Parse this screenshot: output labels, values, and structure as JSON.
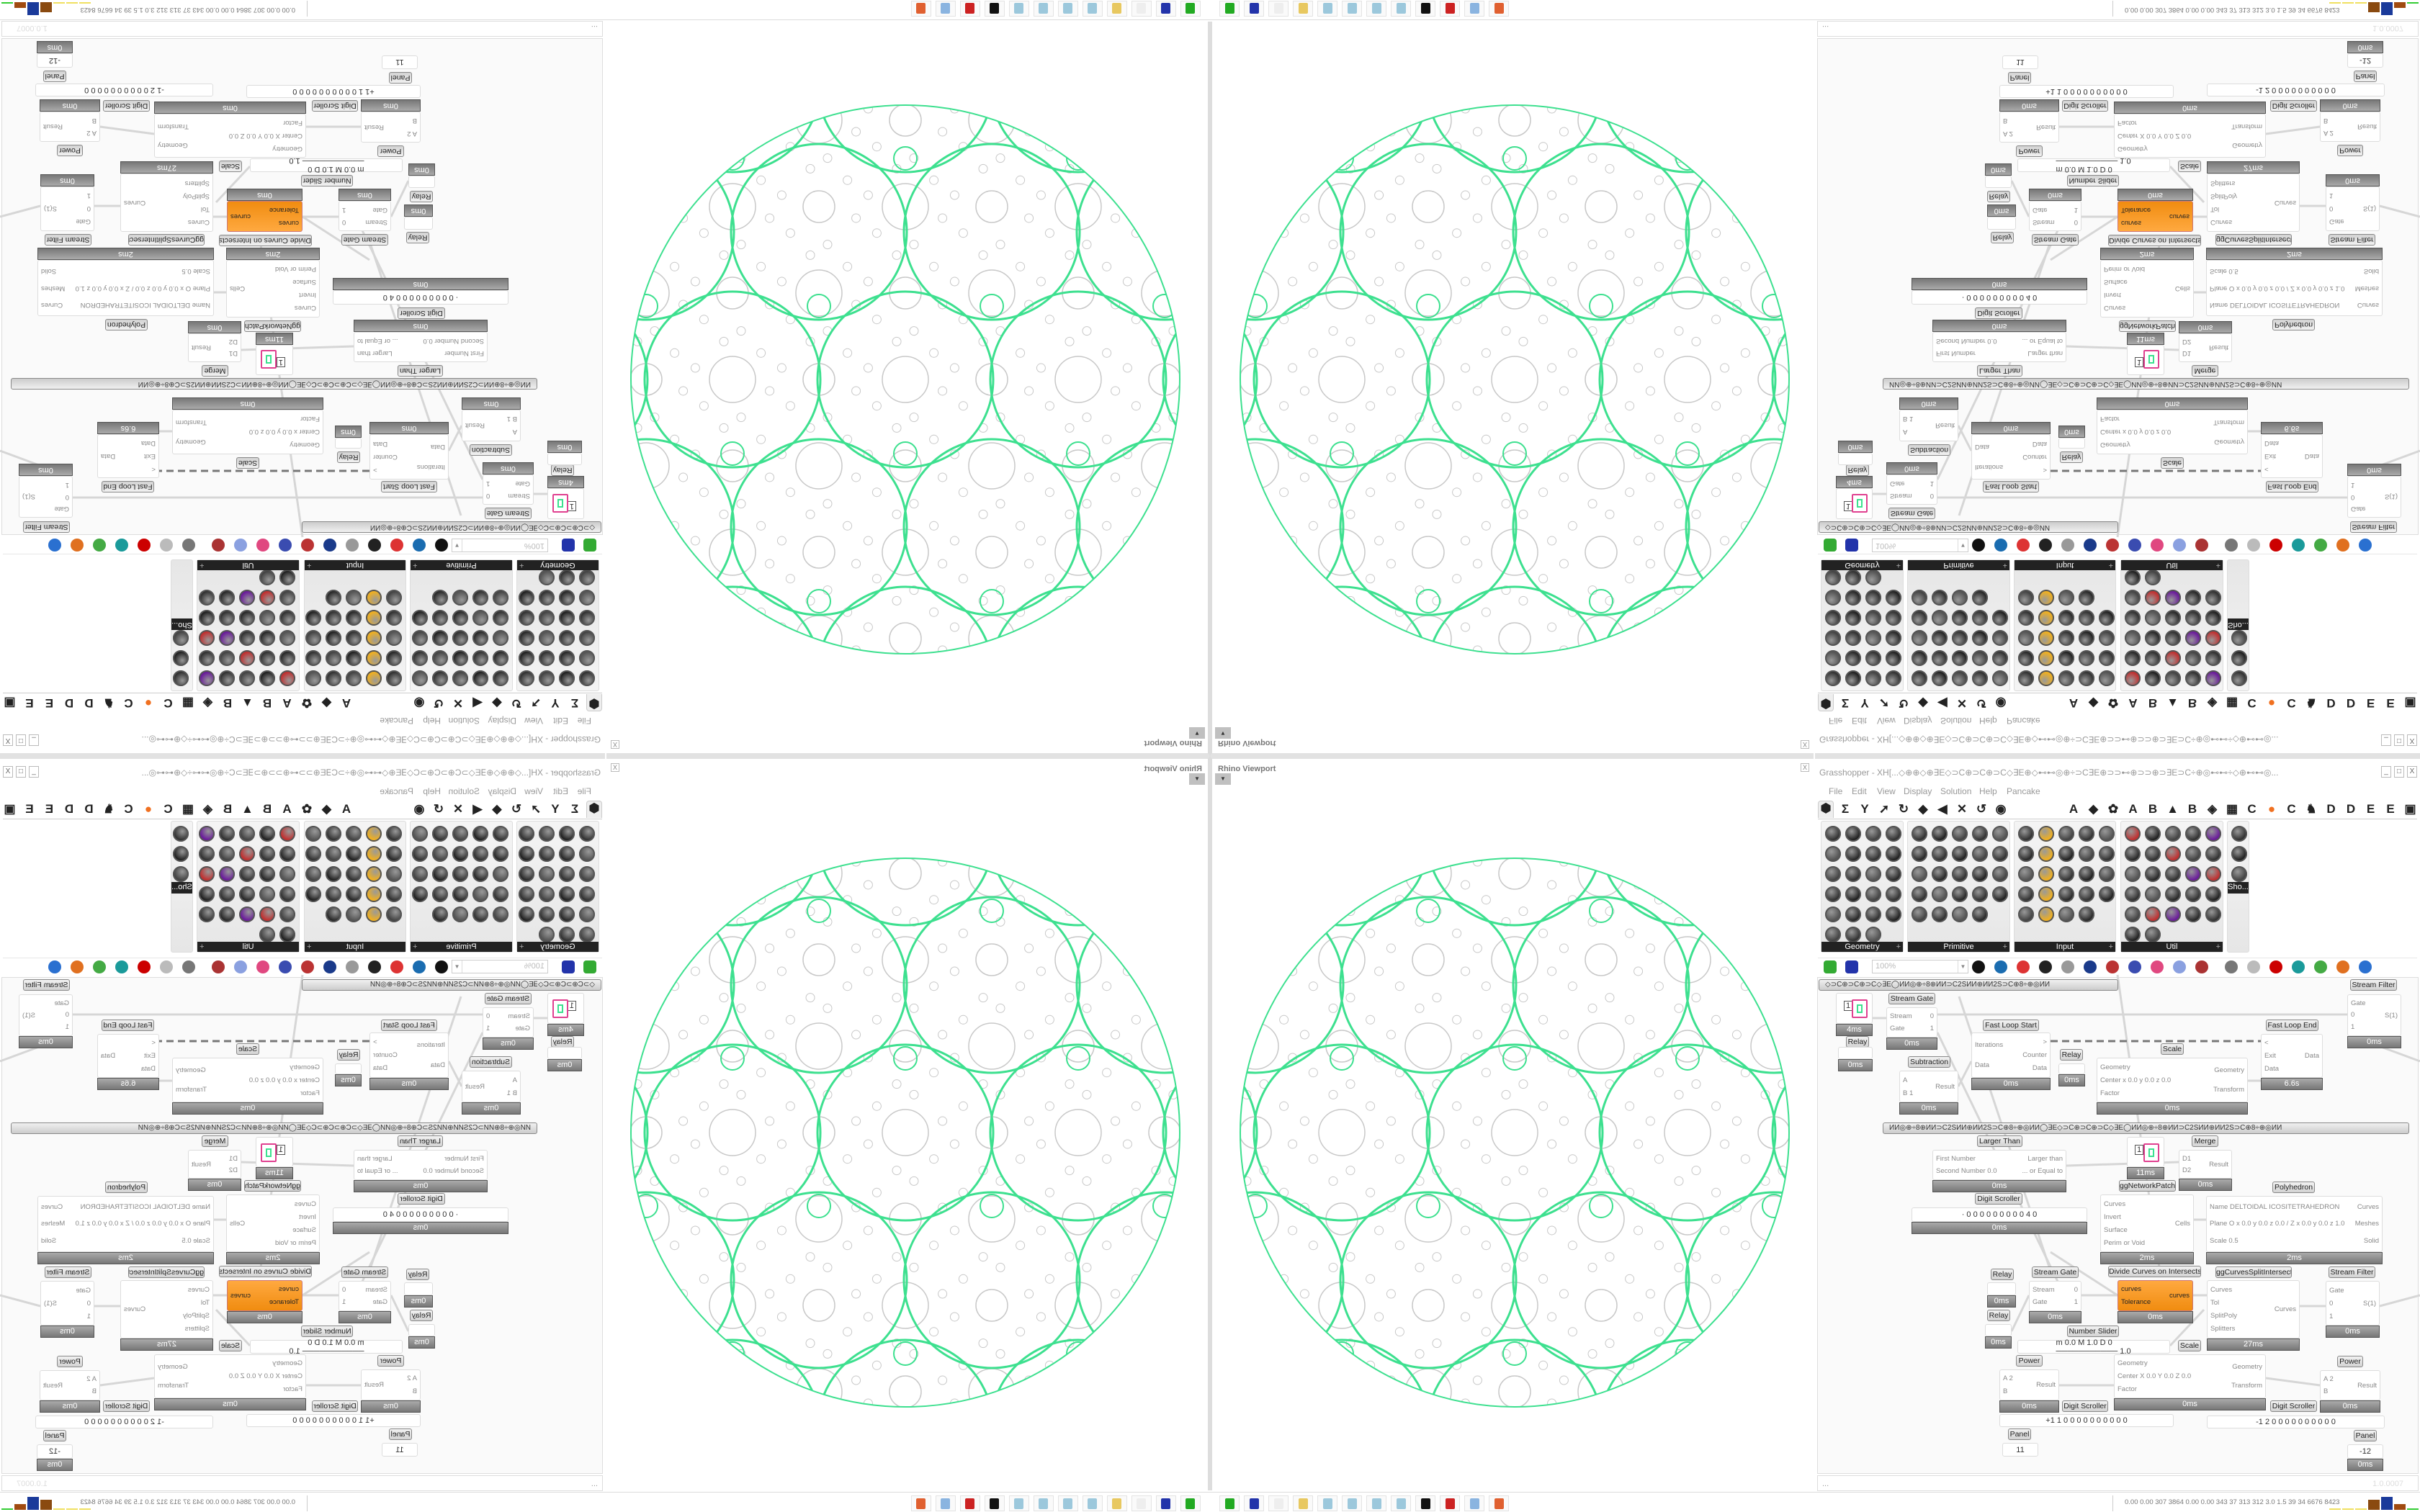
{
  "viewport": {
    "title": "Rhino Viewport",
    "close": "X",
    "dropdown": "▼"
  },
  "grasshopper": {
    "title": "Grasshopper - XH[...◇⊕⊕◇⊕∃E◇⊃C⊕⊃C⊕⊃C◇∃E⊕◇⊷⊷◎⊕÷⊃C∃E⊕⊃⊃⊷⊕⊃⊃⊕⊃∃E⊃C÷⊕◎⊷⊷÷◇⊕⊷⊷◎...",
    "window_buttons": [
      "_",
      "□",
      "X"
    ],
    "menu": [
      "File",
      "Edit",
      "View",
      "Display",
      "Solution",
      "Help",
      "Pancake"
    ],
    "tab_icons": [
      "⬢",
      "Σ",
      "Y",
      "➚",
      "↻",
      "◆",
      "◀",
      "✕",
      "↺",
      "◉"
    ],
    "tab_letters": [
      "A",
      "◆",
      "✿",
      "A",
      "B",
      "▲",
      "B",
      "◈",
      "▦",
      "C",
      "●",
      "C",
      "♞",
      "D",
      "D",
      "E",
      "E",
      "▣"
    ],
    "palettes": [
      {
        "name": "Geometry",
        "count": 23
      },
      {
        "name": "Primitive",
        "count": 24
      },
      {
        "name": "Input",
        "count": 24
      },
      {
        "name": "Util",
        "count": 27
      },
      {
        "name": "Sho...",
        "count": 3
      }
    ],
    "zoom": "100%",
    "group_bars": [
      "◇⊃C⊕⊃C⊕⊃C◇∃E◯ИИ◎⊕÷8⊕ИИ⊃C2SИИ⊕ИИ2S⊃C⊕8÷⊕◎ИИ",
      "ИИ◎⊕÷8⊕ИИ⊃C2SИИ⊕ИИ2S⊃C⊕8÷⊕◎ИИ◯∃E◇⊃C⊕⊃C⊕⊃C◇∃E◯ИИ◎⊕÷8⊕ИИ⊃C2SИИ⊕ИИ2S⊃C⊕8÷⊕◎ИИ"
    ],
    "nodes": [
      {
        "label": "",
        "inputs": [],
        "outputs": [],
        "time": "4ms",
        "value": "1"
      },
      {
        "label": "Stream Gate",
        "inputs": [
          "Stream",
          "Gate"
        ],
        "outputs": [
          "0",
          "1"
        ],
        "time": "0ms"
      },
      {
        "label": "Relay",
        "inputs": [],
        "outputs": [],
        "time": "0ms"
      },
      {
        "label": "Fast Loop Start",
        "inputs": [
          "Iterations",
          "Data"
        ],
        "outputs": [
          ">",
          "Counter",
          "Data"
        ],
        "time": "0ms"
      },
      {
        "label": "Relay",
        "inputs": [],
        "outputs": [],
        "time": "0ms"
      },
      {
        "label": "Subtraction",
        "inputs": [
          "A",
          "B 1"
        ],
        "outputs": [
          "Result"
        ],
        "time": "0ms"
      },
      {
        "label": "Scale",
        "inputs": [
          "Geometry",
          "Center x 0.0 y 0.0 z 0.0",
          "Factor"
        ],
        "outputs": [
          "Geometry",
          "Transform"
        ],
        "time": "0ms"
      },
      {
        "label": "Fast Loop End",
        "inputs": [
          "<",
          "Exit",
          "Data"
        ],
        "outputs": [
          "Data"
        ],
        "time": "6.6s"
      },
      {
        "label": "Stream Filter",
        "inputs": [
          "Gate",
          "0",
          "1"
        ],
        "outputs": [
          "S(1)"
        ],
        "time": "0ms"
      },
      {
        "label": "Larger Than",
        "inputs": [
          "First Number",
          "Second Number 0.0"
        ],
        "outputs": [
          "Larger than",
          "... or Equal to"
        ],
        "time": "0ms"
      },
      {
        "label": "",
        "inputs": [],
        "outputs": [],
        "time": "11ms",
        "value": "1"
      },
      {
        "label": "Merge",
        "inputs": [
          "D1",
          "D2"
        ],
        "outputs": [
          "Result"
        ],
        "time": "0ms"
      },
      {
        "label": "Polyhedron",
        "inputs": [
          "Name DELTOIDAL ICOSITETRAHEDRON",
          "Plane  O x 0.0 y 0.0 z 0.0 / Z x 0.0 y 0.0 z 1.0",
          "Scale 0.5"
        ],
        "outputs": [
          "Curves",
          "Meshes",
          "Solid"
        ],
        "time": "2ms"
      },
      {
        "label": "Digit Scroller",
        "inputs": [],
        "outputs": [],
        "time": "0ms",
        "value": "· 0 0 0 0 0 0 0 0 0 4 0"
      },
      {
        "label": "ggNetworkPatch",
        "inputs": [
          "Curves",
          "Invert",
          "Surface",
          "Perim or Void"
        ],
        "outputs": [
          "Cells"
        ],
        "time": "2ms"
      },
      {
        "label": "Relay",
        "inputs": [],
        "outputs": [],
        "time": "0ms"
      },
      {
        "label": "Stream Gate",
        "inputs": [
          "Stream",
          "Gate"
        ],
        "outputs": [
          "0",
          "1"
        ],
        "time": "0ms"
      },
      {
        "label": "Divide Curves on Intersects",
        "inputs": [
          "curves",
          "Tolerance"
        ],
        "outputs": [
          "curves"
        ],
        "time": "0ms",
        "orange": true
      },
      {
        "label": "ggCurvesSplitIntersect",
        "inputs": [
          "Curves",
          "Tol",
          "SplitPoly",
          "Splitters"
        ],
        "outputs": [
          "Curves"
        ],
        "time": "27ms"
      },
      {
        "label": "Stream Filter",
        "inputs": [
          "Gate",
          "0",
          "1"
        ],
        "outputs": [
          "S(1)"
        ],
        "time": "0ms"
      },
      {
        "label": "Relay",
        "inputs": [],
        "outputs": [],
        "time": "0ms"
      },
      {
        "label": "Number Slider",
        "inputs": [],
        "outputs": [],
        "time": "",
        "value": "m 0.0  M 1.0  D 0  ─────────── 1.0"
      },
      {
        "label": "Scale",
        "inputs": [
          "Geometry",
          "Center X 0.0 Y 0.0 Z 0.0",
          "Factor"
        ],
        "outputs": [
          "Geometry",
          "Transform"
        ],
        "time": "0ms"
      },
      {
        "label": "Power",
        "inputs": [
          "A 2",
          "B"
        ],
        "outputs": [
          "Result"
        ],
        "time": "0ms"
      },
      {
        "label": "Power",
        "inputs": [
          "A 2",
          "B"
        ],
        "outputs": [
          "Result"
        ],
        "time": "0ms"
      },
      {
        "label": "Digit Scroller",
        "inputs": [],
        "outputs": [],
        "time": "",
        "value": "+1 1  0 0 0 0 0 0 0 0 0 0"
      },
      {
        "label": "Digit Scroller",
        "inputs": [],
        "outputs": [],
        "time": "",
        "value": "-1 2  0 0 0 0 0 0 0 0 0 0"
      },
      {
        "label": "Panel",
        "inputs": [],
        "outputs": [],
        "time": "",
        "value": "11"
      },
      {
        "label": "Panel",
        "inputs": [],
        "outputs": [],
        "time": "0ms",
        "value": "-12"
      }
    ],
    "status_left": "...",
    "version": "1.0.0007"
  },
  "taskbar": {
    "apps": [
      "rhino-icon",
      "floppy-64-icon",
      "blank-icon",
      "folder-icon",
      "notepad-icon",
      "notepad-icon",
      "notepad-icon",
      "notepad-icon",
      "inkscape-icon",
      "red-app-icon",
      "calculator-icon",
      "firefox-icon"
    ],
    "stats": "0.00 0.00 307 3864 0.00 0.00 343  37  313  312  3.0  1.5  39  34  6676 8423"
  },
  "colors": {
    "accent_green": "#3de08f",
    "gray_circles": "#c8c8c8",
    "orange_component": "#f7931e"
  }
}
